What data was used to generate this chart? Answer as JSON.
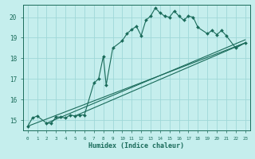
{
  "xlabel": "Humidex (Indice chaleur)",
  "bg_color": "#c5eeed",
  "grid_color": "#9fd8d8",
  "line_color": "#1a6b5a",
  "marker_color": "#1a6b5a",
  "xlim": [
    -0.5,
    23.5
  ],
  "ylim": [
    14.5,
    20.6
  ],
  "yticks": [
    15,
    16,
    17,
    18,
    19,
    20
  ],
  "xticks": [
    0,
    1,
    2,
    3,
    4,
    5,
    6,
    7,
    8,
    9,
    10,
    11,
    12,
    13,
    14,
    15,
    16,
    17,
    18,
    19,
    20,
    21,
    22,
    23
  ],
  "lines": [
    {
      "x": [
        0,
        0.5,
        1,
        2,
        2.5,
        3,
        3.5,
        4,
        4.5,
        5,
        5.5,
        6,
        7,
        7.5,
        8,
        8.3,
        9,
        10,
        10.5,
        11,
        11.5,
        12,
        12.5,
        13,
        13.5,
        14,
        14.5,
        15,
        15.5,
        16,
        16.5,
        17,
        17.5,
        18,
        19,
        19.5,
        20,
        20.5,
        21,
        22,
        23
      ],
      "y": [
        14.7,
        15.1,
        15.2,
        14.85,
        14.85,
        15.15,
        15.15,
        15.1,
        15.25,
        15.2,
        15.25,
        15.25,
        16.8,
        17.0,
        18.1,
        16.7,
        18.5,
        18.85,
        19.2,
        19.4,
        19.55,
        19.1,
        19.85,
        20.05,
        20.45,
        20.2,
        20.05,
        20.0,
        20.3,
        20.05,
        19.85,
        20.05,
        20.0,
        19.5,
        19.2,
        19.35,
        19.15,
        19.35,
        19.1,
        18.5,
        18.75
      ],
      "with_markers": true
    },
    {
      "x": [
        0,
        23
      ],
      "y": [
        14.7,
        18.75
      ],
      "with_markers": false
    },
    {
      "x": [
        2,
        23
      ],
      "y": [
        14.85,
        18.9
      ],
      "with_markers": false
    },
    {
      "x": [
        5,
        23
      ],
      "y": [
        15.2,
        18.75
      ],
      "with_markers": false
    }
  ]
}
